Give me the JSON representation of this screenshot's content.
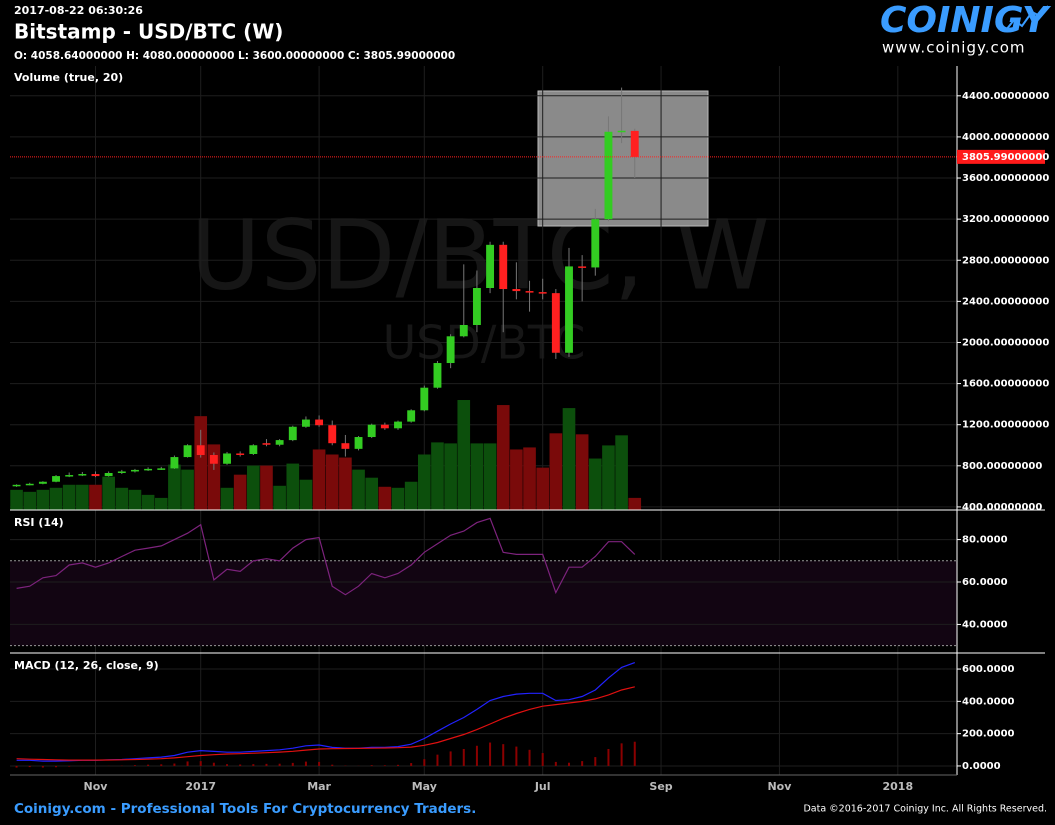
{
  "header": {
    "timestamp": "2017-08-22 06:30:26",
    "title": "Bitstamp - USD/BTC (W)",
    "ohlc": "O: 4058.64000000 H: 4080.00000000 L: 3600.00000000 C: 3805.99000000",
    "logo": "COINIGY",
    "website": "www.coinigy.com"
  },
  "watermark": {
    "main": "USD/BTC, W",
    "sub": "USD/BTC"
  },
  "footer": {
    "tagline": "Coinigy.com - Professional Tools For Cryptocurrency Traders.",
    "copyright": "Data ©2016-2017 Coinigy Inc. All Rights Reserved."
  },
  "chart_data": [
    {
      "type": "candlestick",
      "indicator": "Volume (true, 20)",
      "categories": [
        null,
        null,
        null,
        null,
        null,
        null,
        "Nov",
        null,
        null,
        null,
        null,
        null,
        null,
        null,
        "2017",
        null,
        null,
        null,
        null,
        null,
        null,
        null,
        null,
        "Mar",
        null,
        null,
        null,
        null,
        null,
        null,
        null,
        "May",
        null,
        null,
        null,
        null,
        null,
        null,
        null,
        null,
        "Jul",
        null,
        null,
        null,
        null,
        null,
        null,
        null,
        null,
        "Sep",
        null,
        null,
        null,
        null,
        null,
        null,
        null,
        null,
        "Nov",
        null,
        null,
        null,
        null,
        null,
        null,
        null,
        null,
        "2018",
        null,
        null,
        null,
        null
      ],
      "open": [
        605,
        615,
        625,
        645,
        700,
        710,
        720,
        700,
        730,
        745,
        760,
        770,
        775,
        885,
        1000,
        905,
        820,
        920,
        915,
        1020,
        1005,
        1050,
        1180,
        1250,
        1195,
        1020,
        965,
        1080,
        1200,
        1165,
        1230,
        1340,
        1560,
        1800,
        2060,
        2170,
        2530,
        2950,
        2520,
        2500,
        2490,
        2480,
        1900,
        2740,
        2730,
        3200,
        4050,
        4058.64,
        null,
        null,
        null,
        null,
        null,
        null,
        null,
        null,
        null,
        null,
        null,
        null,
        null,
        null,
        null,
        null,
        null,
        null,
        null,
        null,
        null,
        null,
        null,
        null
      ],
      "high": [
        620,
        635,
        650,
        710,
        735,
        740,
        745,
        745,
        760,
        770,
        785,
        790,
        900,
        1010,
        1150,
        930,
        935,
        940,
        1010,
        1060,
        1060,
        1190,
        1280,
        1290,
        1240,
        1100,
        1090,
        1210,
        1220,
        1240,
        1350,
        1580,
        1820,
        2080,
        2760,
        2700,
        2980,
        2980,
        2780,
        2600,
        2620,
        2520,
        2920,
        2850,
        3300,
        4200,
        4480,
        4080,
        null,
        null,
        null,
        null,
        null,
        null,
        null,
        null,
        null,
        null,
        null,
        null,
        null,
        null,
        null,
        null,
        null,
        null,
        null,
        null,
        null,
        null,
        null,
        null
      ],
      "low": [
        595,
        610,
        620,
        640,
        690,
        700,
        690,
        695,
        720,
        735,
        750,
        760,
        770,
        880,
        880,
        760,
        810,
        890,
        905,
        990,
        990,
        1040,
        1170,
        1180,
        1000,
        890,
        950,
        1070,
        1150,
        1150,
        1220,
        1330,
        1550,
        1750,
        2050,
        2100,
        2480,
        2100,
        2420,
        2300,
        2420,
        1840,
        1860,
        2400,
        2650,
        3180,
        3940,
        3600,
        null,
        null,
        null,
        null,
        null,
        null,
        null,
        null,
        null,
        null,
        null,
        null,
        null,
        null,
        null,
        null,
        null,
        null,
        null,
        null,
        null,
        null,
        null,
        null
      ],
      "close": [
        615,
        625,
        645,
        700,
        710,
        720,
        700,
        730,
        745,
        760,
        770,
        775,
        885,
        1000,
        905,
        820,
        920,
        915,
        1000,
        1005,
        1050,
        1180,
        1250,
        1195,
        1020,
        965,
        1080,
        1200,
        1165,
        1230,
        1340,
        1560,
        1800,
        2060,
        2170,
        2530,
        2950,
        2520,
        2500,
        2490,
        2480,
        1900,
        2740,
        2730,
        3200,
        4050,
        4060,
        3805.99,
        null,
        null,
        null,
        null,
        null,
        null,
        null,
        null,
        null,
        null,
        null,
        null,
        null,
        null,
        null,
        null,
        null,
        null,
        null,
        null,
        null,
        null,
        null,
        null
      ],
      "volume": [
        20,
        18,
        20,
        22,
        25,
        25,
        25,
        33,
        22,
        20,
        15,
        12,
        45,
        40,
        93,
        65,
        22,
        35,
        44,
        44,
        24,
        46,
        30,
        60,
        55,
        52,
        40,
        32,
        23,
        22,
        28,
        55,
        67,
        66,
        109,
        66,
        66,
        104,
        60,
        62,
        42,
        76,
        101,
        75,
        51,
        64,
        74,
        12,
        null,
        null,
        null,
        null,
        null,
        null,
        null,
        null,
        null,
        null,
        null,
        null,
        null,
        null,
        null,
        null,
        null,
        null,
        null,
        null,
        null,
        null,
        null,
        null
      ],
      "ylim": [
        370,
        4690
      ],
      "yticks": [
        {
          "value": 400,
          "label": "400.00000000"
        },
        {
          "value": 800,
          "label": "800.00000000"
        },
        {
          "value": 1200,
          "label": "1200.00000000"
        },
        {
          "value": 1600,
          "label": "1600.00000000"
        },
        {
          "value": 2000,
          "label": "2000.00000000"
        },
        {
          "value": 2400,
          "label": "2400.00000000"
        },
        {
          "value": 2800,
          "label": "2800.00000000"
        },
        {
          "value": 3200,
          "label": "3200.00000000"
        },
        {
          "value": 3600,
          "label": "3600.00000000"
        },
        {
          "value": 4000,
          "label": "4000.00000000"
        },
        {
          "value": 4400,
          "label": "4400.00000000"
        }
      ],
      "y2lim": [
        0,
        440
      ],
      "last_price": {
        "value": 3805.99,
        "label": "3805.99000000"
      },
      "up_color": "#33cc22",
      "down_color": "#ff2020",
      "volume_up_color": "#0c4f0c",
      "volume_down_color": "#7a0a0a",
      "grid": true
    },
    {
      "type": "line",
      "indicator": "RSI (14)",
      "values": [
        57,
        58,
        62,
        63,
        68,
        69,
        67,
        69,
        72,
        75,
        76,
        77,
        80,
        83,
        87,
        61,
        66,
        65,
        70,
        71,
        70,
        76,
        80,
        81,
        58,
        54,
        58,
        64,
        62,
        64,
        68,
        74,
        78,
        82,
        84,
        88,
        90,
        74,
        73,
        73,
        73,
        55,
        67,
        67,
        72,
        79,
        79,
        73,
        null,
        null,
        null,
        null,
        null,
        null,
        null,
        null,
        null,
        null,
        null,
        null,
        null,
        null,
        null,
        null,
        null,
        null,
        null,
        null,
        null,
        null,
        null,
        null
      ],
      "color": "#7d237d",
      "levels": [
        30,
        70
      ],
      "ylim": [
        27,
        93
      ],
      "yticks": [
        {
          "value": 40,
          "label": "40.0000"
        },
        {
          "value": 60,
          "label": "60.0000"
        },
        {
          "value": 80,
          "label": "80.0000"
        }
      ]
    },
    {
      "type": "macd",
      "indicator": "MACD (12, 26, close, 9)",
      "series": [
        {
          "color": "#2222ff",
          "values": [
            35,
            35,
            30,
            30,
            32,
            35,
            35,
            38,
            40,
            45,
            50,
            55,
            65,
            85,
            95,
            90,
            85,
            85,
            90,
            95,
            100,
            110,
            125,
            130,
            115,
            110,
            110,
            115,
            115,
            120,
            135,
            170,
            215,
            260,
            300,
            350,
            405,
            430,
            445,
            450,
            450,
            405,
            410,
            430,
            470,
            545,
            610,
            640,
            null,
            null,
            null,
            null,
            null,
            null,
            null,
            null,
            null,
            null,
            null,
            null,
            null,
            null,
            null,
            null,
            null,
            null,
            null,
            null,
            null,
            null,
            null,
            null
          ]
        },
        {
          "color": "#e01010",
          "values": [
            45,
            42,
            40,
            38,
            36,
            36,
            36,
            37,
            38,
            40,
            42,
            45,
            50,
            57,
            65,
            70,
            74,
            76,
            79,
            82,
            86,
            91,
            98,
            105,
            107,
            108,
            109,
            110,
            111,
            113,
            117,
            128,
            145,
            170,
            195,
            225,
            260,
            295,
            325,
            350,
            370,
            380,
            390,
            400,
            415,
            440,
            470,
            490,
            null,
            null,
            null,
            null,
            null,
            null,
            null,
            null,
            null,
            null,
            null,
            null,
            null,
            null,
            null,
            null,
            null,
            null,
            null,
            null,
            null,
            null,
            null,
            null
          ]
        }
      ],
      "histogram": {
        "color": "#8b0000",
        "values": [
          -10,
          -7,
          -10,
          -8,
          -4,
          -1,
          -1,
          1,
          2,
          5,
          8,
          10,
          15,
          28,
          30,
          20,
          11,
          9,
          11,
          13,
          14,
          19,
          27,
          25,
          8,
          2,
          1,
          5,
          4,
          7,
          18,
          42,
          70,
          90,
          105,
          125,
          145,
          135,
          120,
          100,
          80,
          25,
          20,
          30,
          55,
          105,
          140,
          150,
          null,
          null,
          null,
          null,
          null,
          null,
          null,
          null,
          null,
          null,
          null,
          null,
          null,
          null,
          null,
          null,
          null,
          null,
          null,
          null,
          null,
          null,
          null,
          null
        ]
      },
      "ylim": [
        -56,
        687
      ],
      "yticks": [
        {
          "value": 0,
          "label": "0.0000"
        },
        {
          "value": 200,
          "label": "200.0000"
        },
        {
          "value": 400,
          "label": "400.0000"
        },
        {
          "value": 600,
          "label": "600.0000"
        }
      ]
    }
  ]
}
